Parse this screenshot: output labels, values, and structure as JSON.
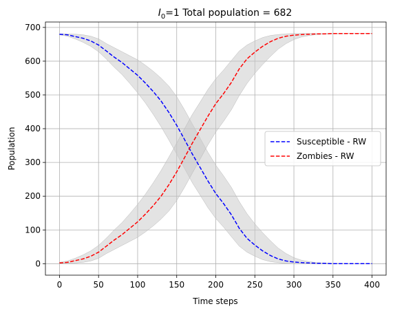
{
  "chart_data": {
    "type": "line",
    "title": {
      "symbol": "I",
      "subscript": "0",
      "rest": "=1 Total population = 682"
    },
    "xlabel": "Time steps",
    "ylabel": "Population",
    "xlim": [
      -18,
      418
    ],
    "ylim": [
      -34,
      716
    ],
    "xticks": [
      0,
      50,
      100,
      150,
      200,
      250,
      300,
      350,
      400
    ],
    "yticks": [
      0,
      100,
      200,
      300,
      400,
      500,
      600,
      700
    ],
    "grid": true,
    "legend_position": "center-right",
    "band_color": "#c8c8c8",
    "series": [
      {
        "name": "Susceptible - RW",
        "color": "#0000ff",
        "style": "dashed",
        "x": [
          0,
          10,
          20,
          30,
          40,
          50,
          60,
          70,
          80,
          90,
          100,
          110,
          120,
          130,
          140,
          150,
          160,
          170,
          180,
          190,
          200,
          210,
          220,
          230,
          240,
          250,
          260,
          270,
          280,
          290,
          300,
          310,
          320,
          330,
          340,
          350,
          360,
          370,
          380,
          390,
          400
        ],
        "values": [
          680,
          678,
          673,
          668,
          660,
          648,
          630,
          612,
          596,
          577,
          558,
          535,
          510,
          482,
          448,
          410,
          368,
          325,
          285,
          245,
          208,
          178,
          145,
          105,
          75,
          55,
          38,
          24,
          14,
          8,
          5,
          3,
          2,
          1,
          1,
          0,
          0,
          0,
          0,
          0,
          0
        ],
        "lower": [
          678,
          674,
          666,
          656,
          644,
          628,
          606,
          582,
          560,
          534,
          506,
          476,
          442,
          406,
          366,
          325,
          282,
          240,
          203,
          166,
          134,
          108,
          80,
          52,
          34,
          22,
          12,
          6,
          3,
          1,
          0,
          0,
          0,
          0,
          0,
          0,
          0,
          0,
          0,
          0,
          0
        ],
        "upper": [
          681,
          681,
          680,
          678,
          674,
          666,
          652,
          640,
          628,
          616,
          604,
          588,
          570,
          550,
          526,
          495,
          456,
          414,
          372,
          330,
          292,
          260,
          226,
          184,
          148,
          118,
          92,
          68,
          46,
          30,
          18,
          10,
          6,
          3,
          2,
          1,
          1,
          0,
          0,
          0,
          0
        ]
      },
      {
        "name": "Zombies - RW",
        "color": "#ff0000",
        "style": "dashed",
        "x": [
          0,
          10,
          20,
          30,
          40,
          50,
          60,
          70,
          80,
          90,
          100,
          110,
          120,
          130,
          140,
          150,
          160,
          170,
          180,
          190,
          200,
          210,
          220,
          230,
          240,
          250,
          260,
          270,
          280,
          290,
          300,
          310,
          320,
          330,
          340,
          350,
          360,
          370,
          380,
          390,
          400
        ],
        "values": [
          2,
          4,
          9,
          14,
          22,
          34,
          52,
          70,
          86,
          105,
          124,
          147,
          172,
          200,
          234,
          272,
          314,
          357,
          397,
          437,
          474,
          504,
          537,
          577,
          607,
          627,
          644,
          658,
          668,
          674,
          677,
          679,
          680,
          681,
          681,
          682,
          682,
          682,
          682,
          682,
          682
        ],
        "lower": [
          1,
          1,
          2,
          4,
          8,
          16,
          30,
          42,
          54,
          66,
          78,
          94,
          112,
          132,
          156,
          187,
          226,
          268,
          310,
          352,
          390,
          422,
          456,
          498,
          534,
          564,
          590,
          614,
          636,
          652,
          664,
          672,
          676,
          679,
          680,
          681,
          681,
          682,
          682,
          682,
          682
        ],
        "upper": [
          4,
          8,
          16,
          26,
          38,
          54,
          76,
          100,
          122,
          148,
          176,
          206,
          240,
          276,
          316,
          357,
          400,
          442,
          479,
          516,
          548,
          574,
          602,
          630,
          648,
          660,
          670,
          676,
          679,
          681,
          682,
          682,
          682,
          682,
          682,
          682,
          682,
          682,
          682,
          682,
          682
        ]
      }
    ]
  }
}
